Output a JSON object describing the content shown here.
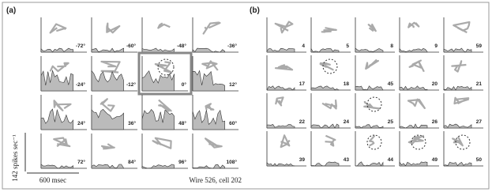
{
  "panel_a": {
    "label": "(a)",
    "angles": [
      "-72°",
      "-60°",
      "-48°",
      "-36°",
      "-24°",
      "-12°",
      "0°",
      "12°",
      "24°",
      "36°",
      "48°",
      "60°",
      "72°",
      "84°",
      "96°",
      "108°"
    ],
    "rate_scale": "142 spikes sec⁻¹",
    "time_scale": "600 msec",
    "caption": "Wire 526, cell 202"
  },
  "panel_b": {
    "label": "(b)",
    "ids": [
      "4",
      "5",
      "8",
      "9",
      "59",
      "17",
      "18",
      "45",
      "20",
      "21",
      "22",
      "24",
      "25",
      "26",
      "27",
      "39",
      "43",
      "44",
      "49",
      "50"
    ]
  }
}
